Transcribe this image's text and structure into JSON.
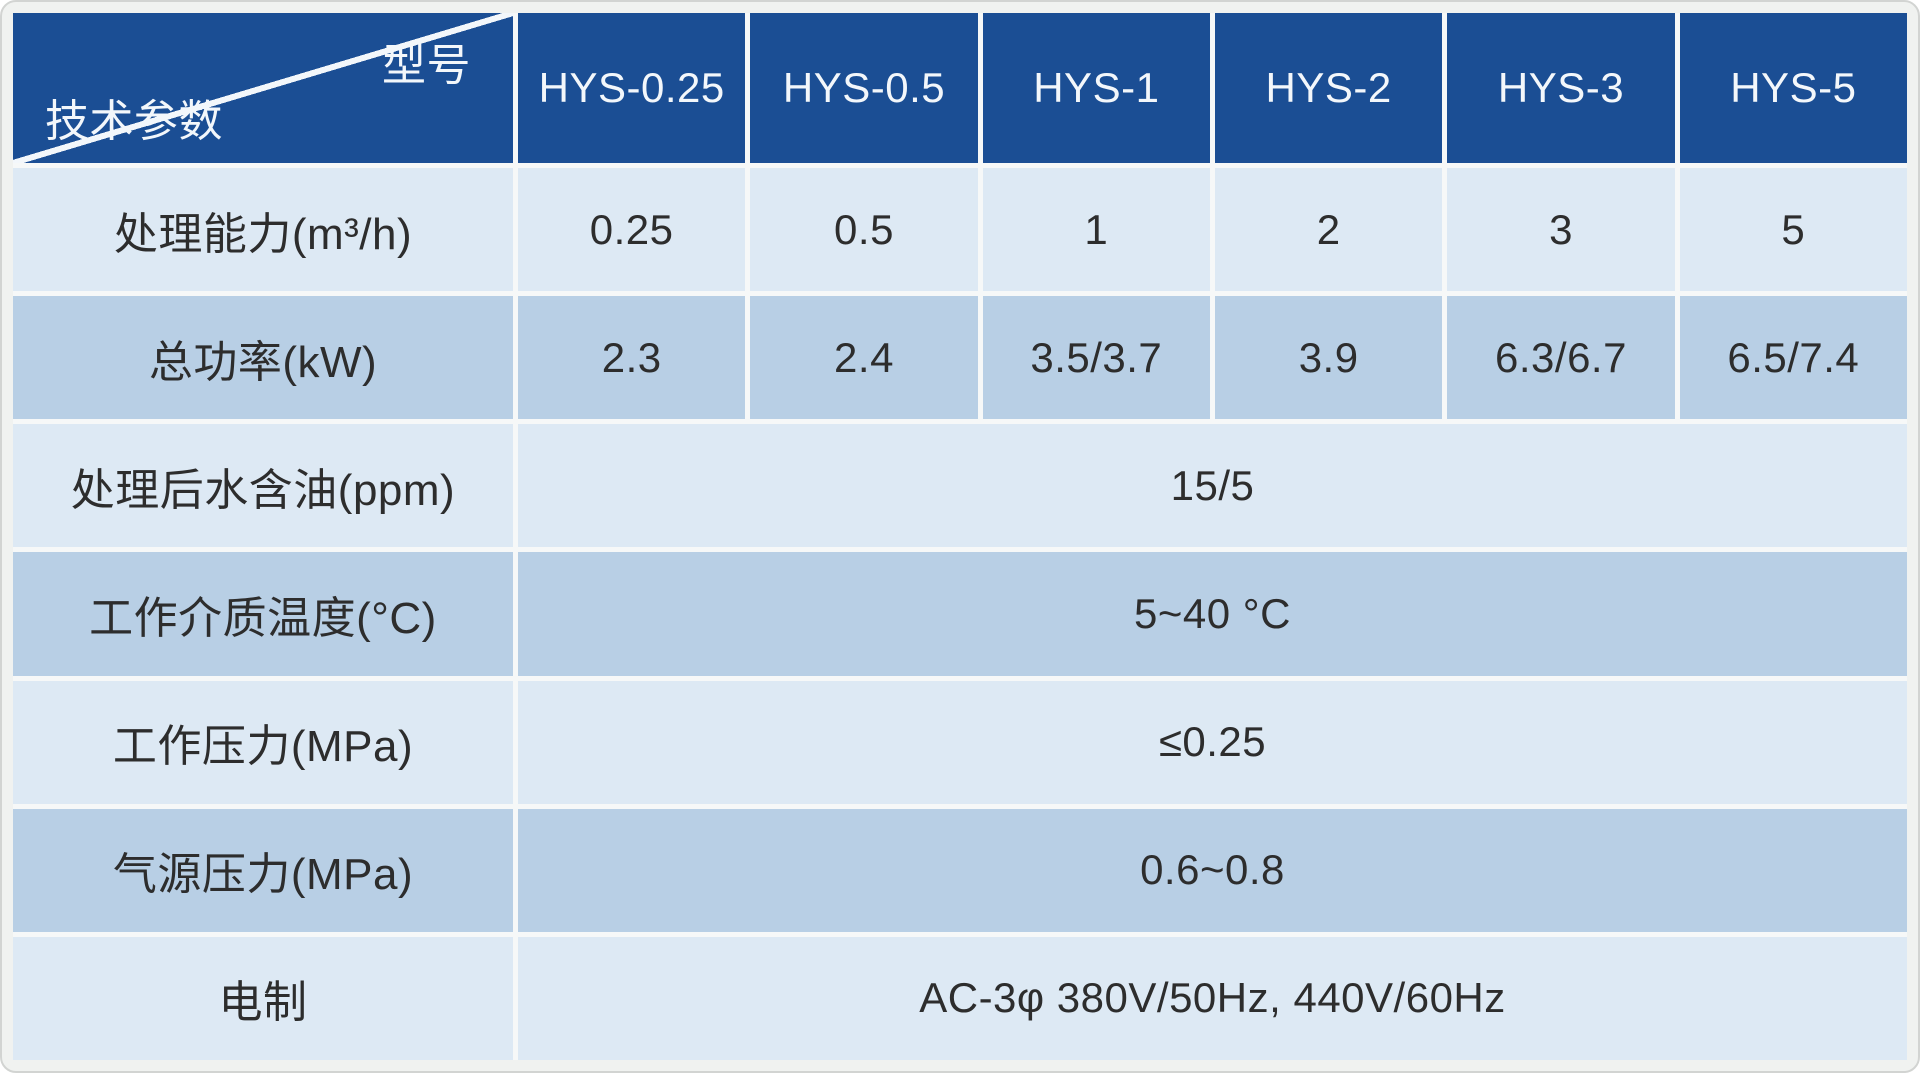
{
  "table": {
    "corner": {
      "model_label": "型号",
      "params_label": "技术参数"
    },
    "columns": [
      "HYS-0.25",
      "HYS-0.5",
      "HYS-1",
      "HYS-2",
      "HYS-3",
      "HYS-5"
    ],
    "rows": [
      {
        "label": "处理能力(m³/h)",
        "values": [
          "0.25",
          "0.5",
          "1",
          "2",
          "3",
          "5"
        ]
      },
      {
        "label": "总功率(kW)",
        "values": [
          "2.3",
          "2.4",
          "3.5/3.7",
          "3.9",
          "6.3/6.7",
          "6.5/7.4"
        ]
      },
      {
        "label": "处理后水含油(ppm)",
        "merged": "15/5"
      },
      {
        "label": "工作介质温度(°C)",
        "merged": "5~40 °C"
      },
      {
        "label": "工作压力(MPa)",
        "merged": "≤0.25"
      },
      {
        "label": "气源压力(MPa)",
        "merged": "0.6~0.8"
      },
      {
        "label": "电制",
        "merged": "AC-3φ 380V/50Hz, 440V/60Hz"
      }
    ],
    "colors": {
      "header_blue": "#1b4e94",
      "row_light_blue": "#dde9f4",
      "row_mid_blue": "#b8cfe5",
      "header_text": "#f3f7fb",
      "body_text": "#2d2d2d",
      "gridline": "#f6f8f8",
      "frame_background": "#f0f2f0"
    }
  }
}
